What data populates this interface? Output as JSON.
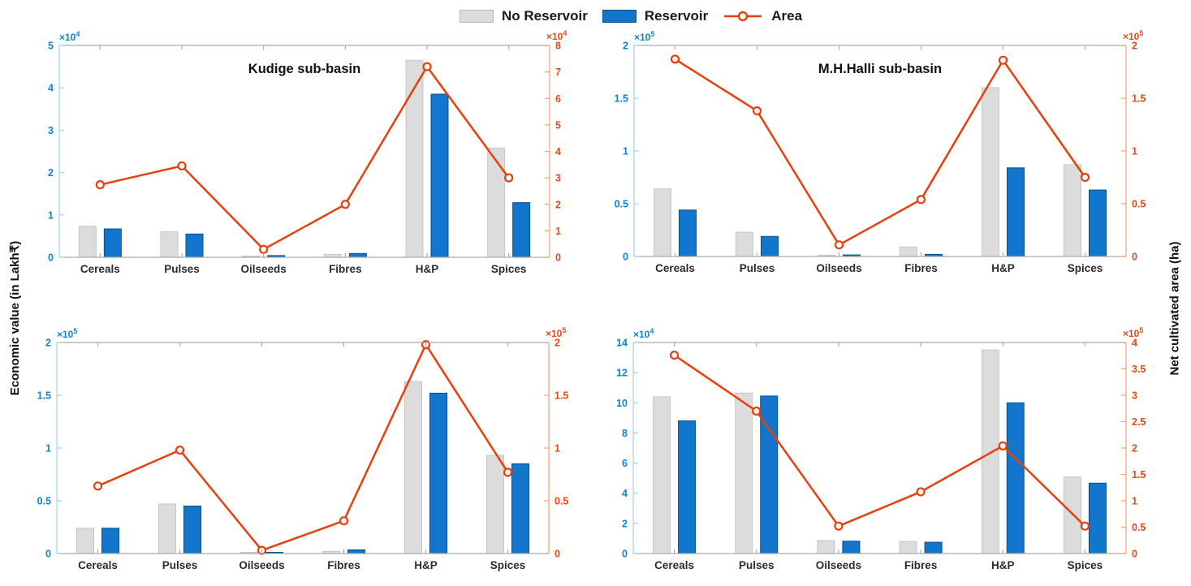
{
  "colors": {
    "no_reservoir": "#dcdcdc",
    "no_reservoir_edge": "#c6c6c6",
    "reservoir": "#1176cc",
    "reservoir_edge": "#0a4f87",
    "area_line": "#e8400c",
    "left_axis_text": "#0d82cf",
    "right_axis_text": "#e9480f",
    "left_spine": "#9fd6ef",
    "right_spine": "#f0a071",
    "gray_spine": "#ababab",
    "category_text": "#2b2b2b"
  },
  "legend": {
    "items": [
      {
        "label": "No Reservoir",
        "type": "bar"
      },
      {
        "label": "Reservoir",
        "type": "bar"
      },
      {
        "label": "Area",
        "type": "line"
      }
    ]
  },
  "ylabel_left": "Economic value (in Lakh₹)",
  "ylabel_right": "Net cultivated area (ha)",
  "chart_data": [
    {
      "type": "bar+line",
      "title": "Kudige sub-basin",
      "categories": [
        "Cereals",
        "Pulses",
        "Oilseeds",
        "Fibres",
        "H&P",
        "Spices"
      ],
      "left_axis": {
        "exponent": "4",
        "lim": [
          0,
          5
        ],
        "ticks": [
          "0",
          "1",
          "2",
          "3",
          "4",
          "5"
        ]
      },
      "right_axis": {
        "exponent": "4",
        "lim": [
          0,
          8
        ],
        "ticks": [
          "0",
          "1",
          "2",
          "3",
          "4",
          "5",
          "6",
          "7",
          "8"
        ]
      },
      "series": [
        {
          "name": "No Reservoir",
          "type": "bar",
          "axis": "left",
          "values": [
            0.73,
            0.6,
            0.03,
            0.07,
            4.65,
            2.58
          ]
        },
        {
          "name": "Reservoir",
          "type": "bar",
          "axis": "left",
          "values": [
            0.67,
            0.55,
            0.04,
            0.09,
            3.85,
            1.29
          ]
        },
        {
          "name": "Area",
          "type": "line",
          "axis": "right",
          "values": [
            2.74,
            3.45,
            0.3,
            2.0,
            7.2,
            3.0
          ]
        }
      ]
    },
    {
      "type": "bar+line",
      "title": "M.H.Halli sub-basin",
      "categories": [
        "Cereals",
        "Pulses",
        "Oilseeds",
        "Fibres",
        "H&P",
        "Spices"
      ],
      "left_axis": {
        "exponent": "5",
        "lim": [
          0,
          2
        ],
        "ticks": [
          "0",
          "0.5",
          "1",
          "1.5",
          "2"
        ]
      },
      "right_axis": {
        "exponent": "5",
        "lim": [
          0,
          2
        ],
        "ticks": [
          "0",
          "0.5",
          "1",
          "1.5",
          "2"
        ]
      },
      "series": [
        {
          "name": "No Reservoir",
          "type": "bar",
          "axis": "left",
          "values": [
            0.64,
            0.23,
            0.005,
            0.09,
            1.6,
            0.87
          ]
        },
        {
          "name": "Reservoir",
          "type": "bar",
          "axis": "left",
          "values": [
            0.44,
            0.19,
            0.015,
            0.02,
            0.84,
            0.63
          ]
        },
        {
          "name": "Area",
          "type": "line",
          "axis": "right",
          "values": [
            1.87,
            1.38,
            0.11,
            0.54,
            1.86,
            0.75
          ]
        }
      ]
    },
    {
      "type": "bar+line",
      "title": "",
      "categories": [
        "Cereals",
        "Pulses",
        "Oilseeds",
        "Fibres",
        "H&P",
        "Spices"
      ],
      "left_axis": {
        "exponent": "5",
        "lim": [
          0,
          2
        ],
        "ticks": [
          "0",
          "0.5",
          "1",
          "1.5",
          "2"
        ]
      },
      "right_axis": {
        "exponent": "5",
        "lim": [
          0,
          2
        ],
        "ticks": [
          "0",
          "0.5",
          "1",
          "1.5",
          "2"
        ]
      },
      "series": [
        {
          "name": "No Reservoir",
          "type": "bar",
          "axis": "left",
          "values": [
            0.24,
            0.47,
            0.005,
            0.02,
            1.63,
            0.93
          ]
        },
        {
          "name": "Reservoir",
          "type": "bar",
          "axis": "left",
          "values": [
            0.24,
            0.45,
            0.005,
            0.035,
            1.52,
            0.85
          ]
        },
        {
          "name": "Area",
          "type": "line",
          "axis": "right",
          "values": [
            0.64,
            0.98,
            0.03,
            0.31,
            1.98,
            0.77
          ]
        }
      ]
    },
    {
      "type": "bar+line",
      "title": "",
      "categories": [
        "Cereals",
        "Pulses",
        "Oilseeds",
        "Fibres",
        "H&P",
        "Spices"
      ],
      "left_axis": {
        "exponent": "4",
        "lim": [
          0,
          14
        ],
        "ticks": [
          "0",
          "2",
          "4",
          "6",
          "8",
          "10",
          "12",
          "14"
        ]
      },
      "right_axis": {
        "exponent": "5",
        "lim": [
          0,
          4
        ],
        "ticks": [
          "0",
          "0.5",
          "1",
          "1.5",
          "2",
          "2.5",
          "3",
          "3.5",
          "4"
        ]
      },
      "series": [
        {
          "name": "No Reservoir",
          "type": "bar",
          "axis": "left",
          "values": [
            10.4,
            10.65,
            0.86,
            0.8,
            13.5,
            5.08
          ]
        },
        {
          "name": "Reservoir",
          "type": "bar",
          "axis": "left",
          "values": [
            8.8,
            10.45,
            0.82,
            0.75,
            10.0,
            4.67
          ]
        },
        {
          "name": "Area",
          "type": "line",
          "axis": "right",
          "values": [
            3.76,
            2.7,
            0.52,
            1.17,
            2.04,
            0.52
          ]
        }
      ]
    }
  ]
}
